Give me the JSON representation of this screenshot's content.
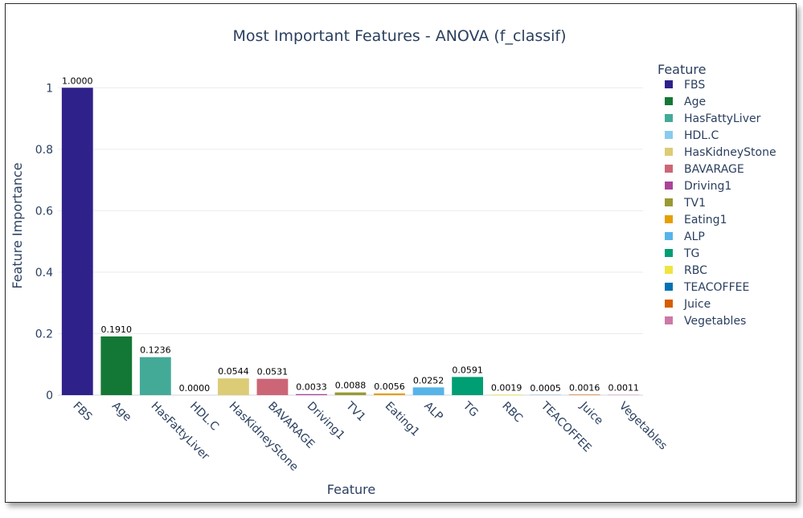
{
  "chart_data": {
    "type": "bar",
    "title": "Most Important Features - ANOVA (f_classif)",
    "xlabel": "Feature",
    "ylabel": "Feature Importance",
    "ylim": [
      0,
      1.1
    ],
    "yticks": [
      0,
      0.2,
      0.4,
      0.6,
      0.8,
      1
    ],
    "ytick_labels": [
      "0",
      "0.2",
      "0.4",
      "0.6",
      "0.8",
      "1"
    ],
    "legend_title": "Feature",
    "legend_position": "right",
    "categories": [
      "FBS",
      "Age",
      "HasFattyLiver",
      "HDL.C",
      "HasKidneyStone",
      "BAVARAGE",
      "Driving1",
      "TV1",
      "Eating1",
      "ALP",
      "TG",
      "RBC",
      "TEACOFFEE",
      "Juice",
      "Vegetables"
    ],
    "values": [
      1.0,
      0.191,
      0.1236,
      0.0,
      0.0544,
      0.0531,
      0.0033,
      0.0088,
      0.0056,
      0.0252,
      0.0591,
      0.0019,
      0.0005,
      0.0016,
      0.0011
    ],
    "value_labels": [
      "1.0000",
      "0.1910",
      "0.1236",
      "0.0000",
      "0.0544",
      "0.0531",
      "0.0033",
      "0.0088",
      "0.0056",
      "0.0252",
      "0.0591",
      "0.0019",
      "0.0005",
      "0.0016",
      "0.0011"
    ],
    "colors": [
      "#2f218a",
      "#137835",
      "#44aa98",
      "#88cbee",
      "#dccc76",
      "#cc6677",
      "#aa4499",
      "#999934",
      "#e69f00",
      "#56b4e9",
      "#009e73",
      "#f0e442",
      "#0072b2",
      "#d55e00",
      "#cc79a7"
    ]
  }
}
